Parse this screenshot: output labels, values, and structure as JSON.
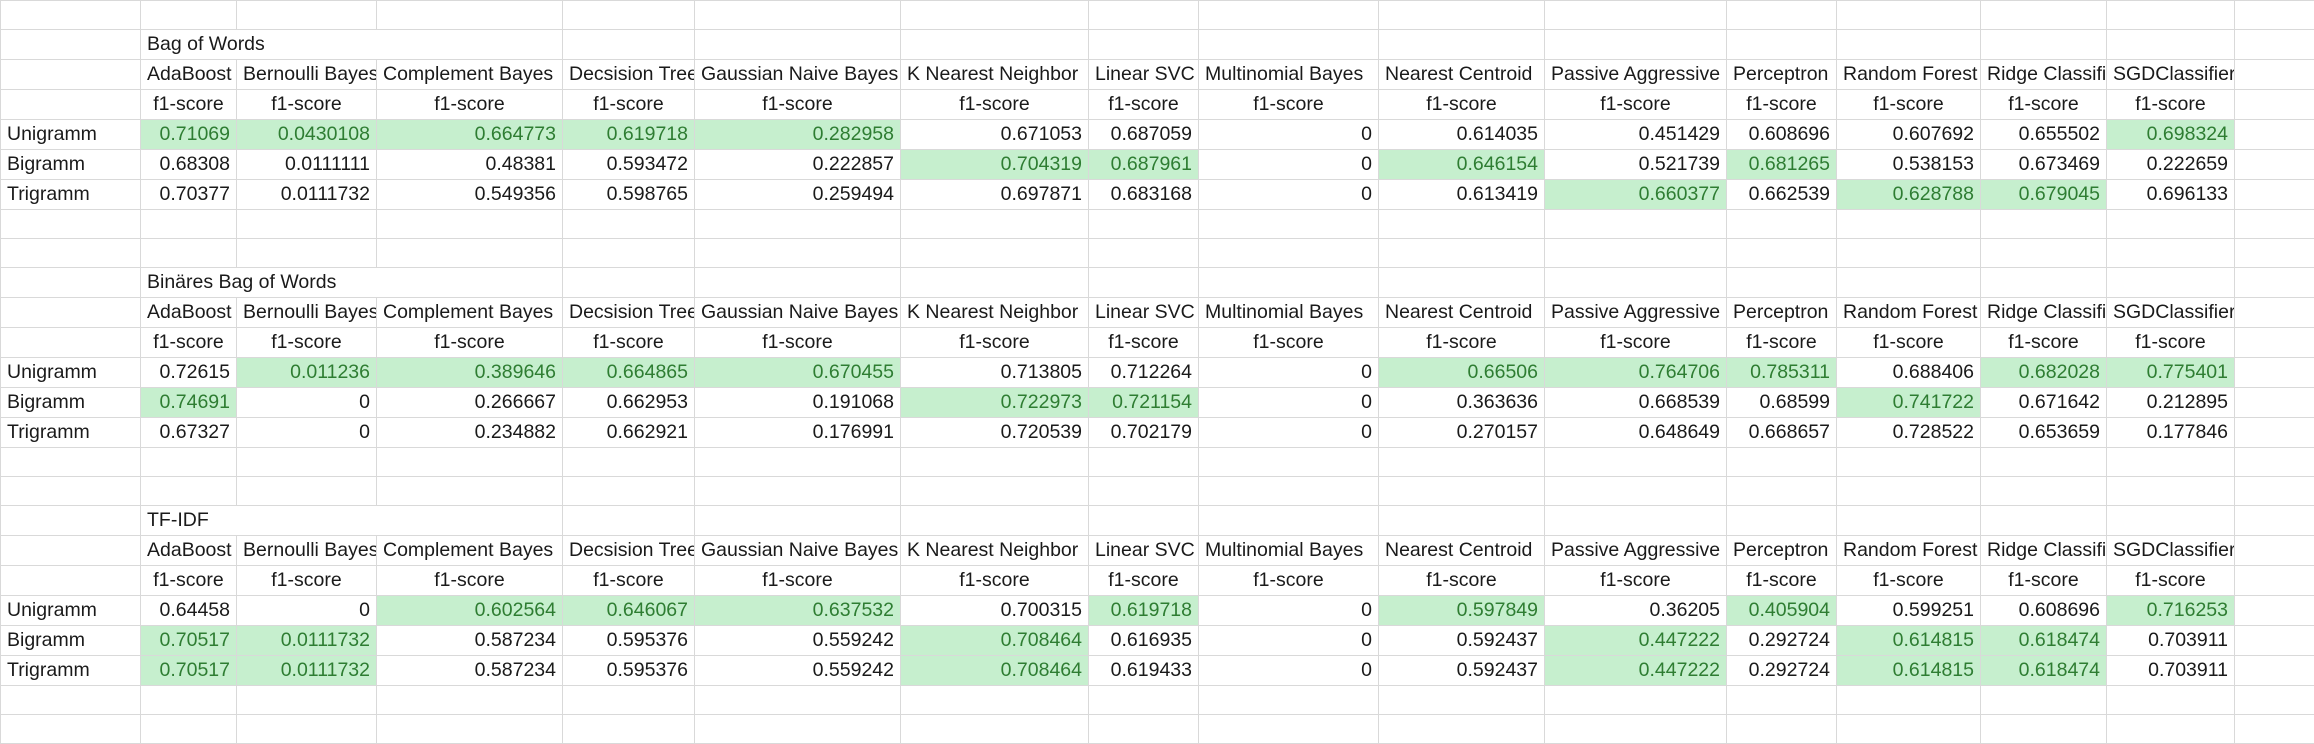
{
  "colors": {
    "highlight_fill": "#c6efce",
    "highlight_text": "#2e7d32",
    "gridline": "#d9d9d9"
  },
  "classifiers": [
    "AdaBoost",
    "Bernoulli Bayes",
    "Complement Bayes",
    "Decsision Tree",
    "Gaussian Naive Bayes",
    "K Nearest Neighbor",
    "Linear SVC",
    "Multinomial Bayes",
    "Nearest Centroid",
    "Passive Aggressive",
    "Perceptron",
    "Random Forest",
    "Ridge Classifier",
    "SGDClassifier"
  ],
  "metric_label": "f1-score",
  "sections": [
    {
      "title": "Bag of Words",
      "rows": [
        {
          "label": "Unigramm",
          "values": [
            "0.71069",
            "0.0430108",
            "0.664773",
            "0.619718",
            "0.282958",
            "0.671053",
            "0.687059",
            "0",
            "0.614035",
            "0.451429",
            "0.608696",
            "0.607692",
            "0.655502",
            "0.698324"
          ],
          "highlight": [
            true,
            true,
            true,
            true,
            true,
            false,
            false,
            false,
            false,
            false,
            false,
            false,
            false,
            true
          ]
        },
        {
          "label": "Bigramm",
          "values": [
            "0.68308",
            "0.0111111",
            "0.48381",
            "0.593472",
            "0.222857",
            "0.704319",
            "0.687961",
            "0",
            "0.646154",
            "0.521739",
            "0.681265",
            "0.538153",
            "0.673469",
            "0.222659"
          ],
          "highlight": [
            false,
            false,
            false,
            false,
            false,
            true,
            true,
            false,
            true,
            false,
            true,
            false,
            false,
            false
          ]
        },
        {
          "label": "Trigramm",
          "values": [
            "0.70377",
            "0.0111732",
            "0.549356",
            "0.598765",
            "0.259494",
            "0.697871",
            "0.683168",
            "0",
            "0.613419",
            "0.660377",
            "0.662539",
            "0.628788",
            "0.679045",
            "0.696133"
          ],
          "highlight": [
            false,
            false,
            false,
            false,
            false,
            false,
            false,
            false,
            false,
            true,
            false,
            true,
            true,
            false
          ]
        }
      ]
    },
    {
      "title": "Binäres Bag of Words",
      "rows": [
        {
          "label": "Unigramm",
          "values": [
            "0.72615",
            "0.011236",
            "0.389646",
            "0.664865",
            "0.670455",
            "0.713805",
            "0.712264",
            "0",
            "0.66506",
            "0.764706",
            "0.785311",
            "0.688406",
            "0.682028",
            "0.775401"
          ],
          "highlight": [
            false,
            true,
            true,
            true,
            true,
            false,
            false,
            false,
            true,
            true,
            true,
            false,
            true,
            true
          ]
        },
        {
          "label": "Bigramm",
          "values": [
            "0.74691",
            "0",
            "0.266667",
            "0.662953",
            "0.191068",
            "0.722973",
            "0.721154",
            "0",
            "0.363636",
            "0.668539",
            "0.68599",
            "0.741722",
            "0.671642",
            "0.212895"
          ],
          "highlight": [
            true,
            false,
            false,
            false,
            false,
            true,
            true,
            false,
            false,
            false,
            false,
            true,
            false,
            false
          ]
        },
        {
          "label": "Trigramm",
          "values": [
            "0.67327",
            "0",
            "0.234882",
            "0.662921",
            "0.176991",
            "0.720539",
            "0.702179",
            "0",
            "0.270157",
            "0.648649",
            "0.668657",
            "0.728522",
            "0.653659",
            "0.177846"
          ],
          "highlight": [
            false,
            false,
            false,
            false,
            false,
            false,
            false,
            false,
            false,
            false,
            false,
            false,
            false,
            false
          ]
        }
      ]
    },
    {
      "title": "TF-IDF",
      "rows": [
        {
          "label": "Unigramm",
          "values": [
            "0.64458",
            "0",
            "0.602564",
            "0.646067",
            "0.637532",
            "0.700315",
            "0.619718",
            "0",
            "0.597849",
            "0.36205",
            "0.405904",
            "0.599251",
            "0.608696",
            "0.716253"
          ],
          "highlight": [
            false,
            false,
            true,
            true,
            true,
            false,
            true,
            false,
            true,
            false,
            true,
            false,
            false,
            true
          ]
        },
        {
          "label": "Bigramm",
          "values": [
            "0.70517",
            "0.0111732",
            "0.587234",
            "0.595376",
            "0.559242",
            "0.708464",
            "0.616935",
            "0",
            "0.592437",
            "0.447222",
            "0.292724",
            "0.614815",
            "0.618474",
            "0.703911"
          ],
          "highlight": [
            true,
            true,
            false,
            false,
            false,
            true,
            false,
            false,
            false,
            true,
            false,
            true,
            true,
            false
          ]
        },
        {
          "label": "Trigramm",
          "values": [
            "0.70517",
            "0.0111732",
            "0.587234",
            "0.595376",
            "0.559242",
            "0.708464",
            "0.619433",
            "0",
            "0.592437",
            "0.447222",
            "0.292724",
            "0.614815",
            "0.618474",
            "0.703911"
          ],
          "highlight": [
            true,
            true,
            false,
            false,
            false,
            true,
            false,
            false,
            false,
            true,
            false,
            true,
            true,
            false
          ]
        }
      ]
    }
  ]
}
